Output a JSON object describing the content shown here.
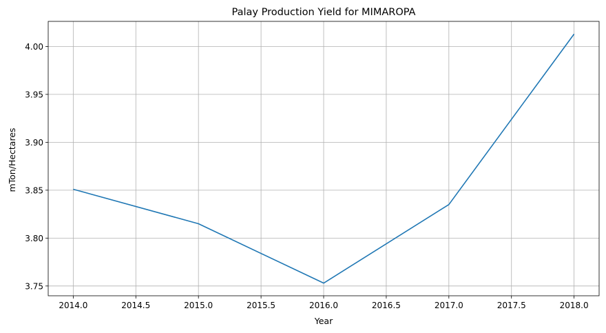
{
  "chart_data": {
    "type": "line",
    "title": "Palay Production Yield for MIMAROPA",
    "xlabel": "Year",
    "ylabel": "mTon/Hectares",
    "x": [
      2014,
      2015,
      2016,
      2017,
      2018
    ],
    "series": [
      {
        "values": [
          3.851,
          3.815,
          3.753,
          3.835,
          4.013
        ],
        "color": "#1f77b4"
      }
    ],
    "xlim": [
      2013.8,
      2018.2
    ],
    "ylim": [
      3.7398,
      4.0262
    ],
    "xticks": [
      "2014.0",
      "2014.5",
      "2015.0",
      "2015.5",
      "2016.0",
      "2016.5",
      "2017.0",
      "2017.5",
      "2018.0"
    ],
    "yticks": [
      "3.75",
      "3.80",
      "3.85",
      "3.90",
      "3.95",
      "4.00"
    ],
    "grid": true
  }
}
